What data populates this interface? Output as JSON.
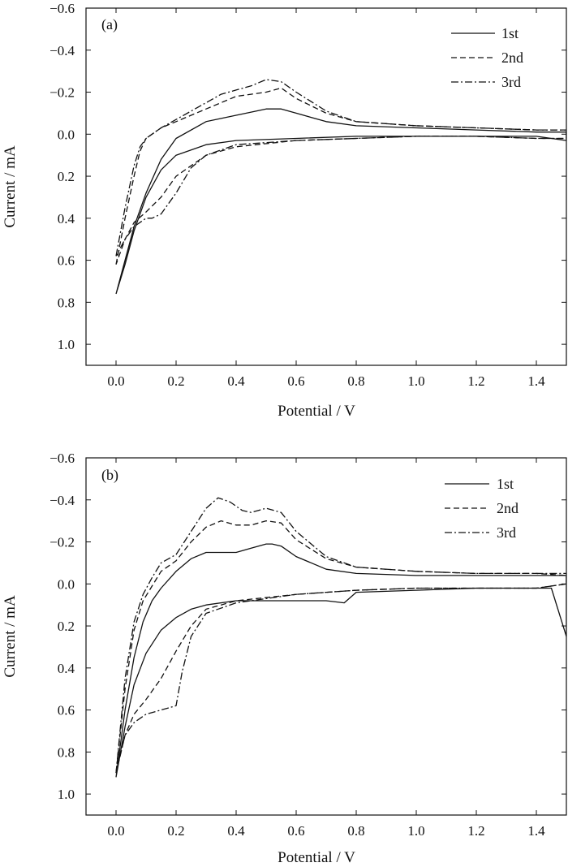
{
  "chart_data": [
    {
      "type": "line",
      "panel_label": "(a)",
      "xlabel": "Potential / V",
      "ylabel": "Current / mA",
      "xlim": [
        -0.1,
        1.5
      ],
      "ylim": [
        -0.6,
        1.1
      ],
      "y_inverted": true,
      "xticks": [
        0.0,
        0.2,
        0.4,
        0.6,
        0.8,
        1.0,
        1.2,
        1.4
      ],
      "xtick_labels": [
        "0.0",
        "0.2",
        "0.4",
        "0.6",
        "0.8",
        "1.0",
        "1.2",
        "1.4"
      ],
      "yticks": [
        -0.6,
        -0.4,
        -0.2,
        0.0,
        0.2,
        0.4,
        0.6,
        0.8,
        1.0
      ],
      "ytick_labels": [
        "−0.6",
        "−0.4",
        "−0.2",
        "0.0",
        "0.2",
        "0.4",
        "0.6",
        "0.8",
        "1.0"
      ],
      "legend_position": "top-right",
      "grid": false,
      "series": [
        {
          "name": "1st",
          "dash": "solid",
          "x": [
            0.0,
            0.03,
            0.06,
            0.1,
            0.15,
            0.2,
            0.3,
            0.4,
            0.5,
            0.55,
            0.6,
            0.7,
            0.8,
            1.0,
            1.2,
            1.4,
            1.5,
            1.5,
            1.4,
            1.2,
            1.0,
            0.8,
            0.6,
            0.4,
            0.3,
            0.2,
            0.15,
            0.1,
            0.06,
            0.03,
            0.0
          ],
          "y": [
            0.76,
            0.6,
            0.44,
            0.28,
            0.12,
            0.02,
            -0.06,
            -0.09,
            -0.12,
            -0.12,
            -0.1,
            -0.06,
            -0.04,
            -0.03,
            -0.02,
            -0.01,
            -0.01,
            0.03,
            0.01,
            0.01,
            0.01,
            0.01,
            0.02,
            0.03,
            0.05,
            0.1,
            0.17,
            0.3,
            0.46,
            0.62,
            0.76
          ]
        },
        {
          "name": "2nd",
          "dash": "dashed",
          "x": [
            0.0,
            0.03,
            0.06,
            0.08,
            0.1,
            0.15,
            0.2,
            0.3,
            0.4,
            0.45,
            0.5,
            0.55,
            0.6,
            0.7,
            0.8,
            1.0,
            1.2,
            1.4,
            1.5,
            1.5,
            1.4,
            1.2,
            1.0,
            0.8,
            0.6,
            0.4,
            0.3,
            0.2,
            0.15,
            0.1,
            0.06,
            0.03,
            0.0
          ],
          "y": [
            0.62,
            0.4,
            0.2,
            0.08,
            0.02,
            -0.03,
            -0.06,
            -0.12,
            -0.18,
            -0.19,
            -0.2,
            -0.22,
            -0.17,
            -0.1,
            -0.06,
            -0.04,
            -0.03,
            -0.02,
            -0.02,
            0.02,
            0.02,
            0.01,
            0.01,
            0.02,
            0.03,
            0.06,
            0.1,
            0.2,
            0.3,
            0.37,
            0.42,
            0.5,
            0.62
          ]
        },
        {
          "name": "3rd",
          "dash": "dashdot",
          "x": [
            0.0,
            0.03,
            0.06,
            0.08,
            0.1,
            0.15,
            0.2,
            0.3,
            0.35,
            0.4,
            0.45,
            0.5,
            0.55,
            0.6,
            0.7,
            0.8,
            1.0,
            1.2,
            1.4,
            1.5,
            1.5,
            1.4,
            1.2,
            1.0,
            0.8,
            0.6,
            0.4,
            0.3,
            0.25,
            0.2,
            0.15,
            0.12,
            0.1,
            0.06,
            0.03,
            0.0
          ],
          "y": [
            0.58,
            0.35,
            0.15,
            0.06,
            0.02,
            -0.03,
            -0.07,
            -0.15,
            -0.19,
            -0.21,
            -0.23,
            -0.26,
            -0.25,
            -0.2,
            -0.11,
            -0.06,
            -0.04,
            -0.03,
            -0.02,
            -0.02,
            0.02,
            0.02,
            0.01,
            0.01,
            0.02,
            0.03,
            0.05,
            0.1,
            0.16,
            0.28,
            0.38,
            0.4,
            0.4,
            0.44,
            0.5,
            0.58
          ]
        }
      ]
    },
    {
      "type": "line",
      "panel_label": "(b)",
      "xlabel": "Potential / V",
      "ylabel": "Current / mA",
      "xlim": [
        -0.1,
        1.5
      ],
      "ylim": [
        -0.6,
        1.1
      ],
      "y_inverted": true,
      "xticks": [
        0.0,
        0.2,
        0.4,
        0.6,
        0.8,
        1.0,
        1.2,
        1.4
      ],
      "xtick_labels": [
        "0.0",
        "0.2",
        "0.4",
        "0.6",
        "0.8",
        "1.0",
        "1.2",
        "1.4"
      ],
      "yticks": [
        -0.6,
        -0.4,
        -0.2,
        0.0,
        0.2,
        0.4,
        0.6,
        0.8,
        1.0
      ],
      "ytick_labels": [
        "−0.6",
        "−0.4",
        "−0.2",
        "0.0",
        "0.2",
        "0.4",
        "0.6",
        "0.8",
        "1.0"
      ],
      "legend_position": "top-right",
      "grid": false,
      "series": [
        {
          "name": "1st",
          "dash": "solid",
          "x": [
            0.0,
            0.03,
            0.06,
            0.09,
            0.12,
            0.15,
            0.2,
            0.25,
            0.3,
            0.35,
            0.4,
            0.45,
            0.5,
            0.52,
            0.55,
            0.6,
            0.7,
            0.8,
            1.0,
            1.2,
            1.4,
            1.49,
            1.5,
            1.5,
            1.45,
            1.2,
            1.0,
            0.8,
            0.76,
            0.7,
            0.6,
            0.4,
            0.3,
            0.25,
            0.2,
            0.15,
            0.1,
            0.06,
            0.03,
            0.0
          ],
          "y": [
            0.92,
            0.6,
            0.35,
            0.18,
            0.08,
            0.02,
            -0.06,
            -0.12,
            -0.15,
            -0.15,
            -0.15,
            -0.17,
            -0.19,
            -0.19,
            -0.18,
            -0.13,
            -0.07,
            -0.05,
            -0.04,
            -0.04,
            -0.04,
            -0.04,
            -0.04,
            0.25,
            0.02,
            0.02,
            0.03,
            0.04,
            0.09,
            0.08,
            0.08,
            0.08,
            0.1,
            0.12,
            0.16,
            0.22,
            0.33,
            0.48,
            0.68,
            0.92
          ]
        },
        {
          "name": "2nd",
          "dash": "dashed",
          "x": [
            0.0,
            0.03,
            0.06,
            0.09,
            0.12,
            0.15,
            0.2,
            0.25,
            0.3,
            0.35,
            0.4,
            0.45,
            0.5,
            0.55,
            0.6,
            0.7,
            0.8,
            1.0,
            1.2,
            1.4,
            1.5,
            1.5,
            1.4,
            1.2,
            1.0,
            0.8,
            0.6,
            0.4,
            0.3,
            0.25,
            0.2,
            0.15,
            0.1,
            0.06,
            0.03,
            0.0
          ],
          "y": [
            0.9,
            0.5,
            0.22,
            0.08,
            0.01,
            -0.06,
            -0.11,
            -0.2,
            -0.27,
            -0.3,
            -0.28,
            -0.28,
            -0.3,
            -0.29,
            -0.21,
            -0.12,
            -0.08,
            -0.06,
            -0.05,
            -0.05,
            -0.04,
            0.0,
            0.02,
            0.02,
            0.02,
            0.03,
            0.05,
            0.08,
            0.12,
            0.2,
            0.32,
            0.45,
            0.55,
            0.62,
            0.72,
            0.9
          ]
        },
        {
          "name": "3rd",
          "dash": "dashdot",
          "x": [
            0.0,
            0.03,
            0.06,
            0.09,
            0.12,
            0.15,
            0.2,
            0.25,
            0.3,
            0.34,
            0.38,
            0.42,
            0.45,
            0.5,
            0.55,
            0.6,
            0.7,
            0.8,
            1.0,
            1.2,
            1.4,
            1.5,
            1.5,
            1.4,
            1.2,
            1.0,
            0.8,
            0.6,
            0.4,
            0.3,
            0.25,
            0.22,
            0.2,
            0.15,
            0.1,
            0.06,
            0.03,
            0.0
          ],
          "y": [
            0.9,
            0.45,
            0.18,
            0.05,
            -0.03,
            -0.1,
            -0.14,
            -0.25,
            -0.36,
            -0.41,
            -0.39,
            -0.35,
            -0.34,
            -0.36,
            -0.34,
            -0.25,
            -0.13,
            -0.08,
            -0.06,
            -0.05,
            -0.05,
            -0.05,
            0.0,
            0.02,
            0.02,
            0.02,
            0.03,
            0.05,
            0.09,
            0.14,
            0.25,
            0.42,
            0.58,
            0.6,
            0.62,
            0.66,
            0.72,
            0.9
          ]
        }
      ]
    }
  ]
}
